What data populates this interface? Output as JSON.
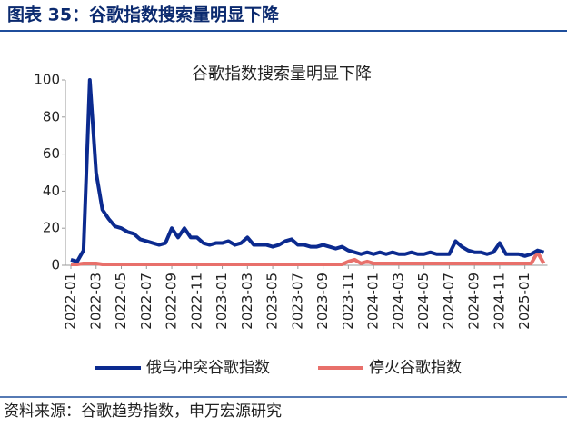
{
  "header": {
    "title": "图表 35：谷歌指数搜索量明显下降"
  },
  "chart_data": {
    "type": "line",
    "title": "谷歌指数搜索量明显下降",
    "categories": [
      "2022-01",
      null,
      null,
      null,
      "2022-03",
      null,
      null,
      null,
      "2022-05",
      null,
      null,
      null,
      "2022-07",
      null,
      null,
      null,
      "2022-09",
      null,
      null,
      null,
      "2022-11",
      null,
      null,
      null,
      "2023-01",
      null,
      null,
      null,
      "2023-03",
      null,
      null,
      null,
      "2023-05",
      null,
      null,
      null,
      "2023-07",
      null,
      null,
      null,
      "2023-09",
      null,
      null,
      null,
      "2023-11",
      null,
      null,
      null,
      "2024-01",
      null,
      null,
      null,
      "2024-03",
      null,
      null,
      null,
      "2024-05",
      null,
      null,
      null,
      "2024-07",
      null,
      null,
      null,
      "2024-09",
      null,
      null,
      null,
      "2024-11",
      null,
      null,
      null,
      "2025-01",
      null,
      null,
      null
    ],
    "series": [
      {
        "name": "俄乌冲突谷歌指数",
        "color": "#0b2a8f",
        "values": [
          3,
          2,
          8,
          100,
          50,
          30,
          25,
          21,
          20,
          18,
          17,
          14,
          13,
          12,
          11,
          12,
          20,
          15,
          20,
          15,
          15,
          12,
          11,
          12,
          12,
          13,
          11,
          12,
          15,
          11,
          11,
          11,
          10,
          11,
          13,
          14,
          11,
          11,
          10,
          10,
          11,
          10,
          9,
          10,
          8,
          7,
          6,
          7,
          6,
          7,
          6,
          7,
          6,
          6,
          7,
          6,
          6,
          7,
          6,
          6,
          6,
          13,
          10,
          8,
          7,
          7,
          6,
          7,
          12,
          6,
          6,
          6,
          5,
          6,
          8,
          7
        ]
      },
      {
        "name": "停火谷歌指数",
        "color": "#e8706b",
        "values": [
          0.5,
          0.5,
          1,
          1,
          1,
          0.5,
          0.5,
          0.5,
          0.5,
          0.5,
          0.5,
          0.5,
          0.5,
          0.5,
          0.5,
          0.5,
          0.5,
          0.5,
          0.5,
          0.5,
          0.5,
          0.5,
          0.5,
          0.5,
          0.5,
          0.5,
          0.5,
          0.5,
          0.5,
          0.5,
          0.5,
          0.5,
          0.5,
          0.5,
          0.5,
          0.5,
          0.5,
          0.5,
          0.5,
          0.5,
          0.5,
          0.5,
          0.5,
          0.5,
          2,
          3,
          1,
          2,
          1,
          1,
          1,
          1,
          1,
          1,
          1,
          1,
          1,
          1,
          1,
          1,
          1,
          1,
          1,
          1,
          1,
          1,
          1,
          1,
          1,
          1,
          1,
          1,
          1,
          1,
          7,
          1
        ]
      }
    ],
    "ylim": [
      0,
      100
    ],
    "yticks": [
      0,
      20,
      40,
      60,
      80,
      100
    ],
    "grid": false
  },
  "footer": {
    "source": "资料来源：谷歌趋势指数，申万宏源研究"
  }
}
